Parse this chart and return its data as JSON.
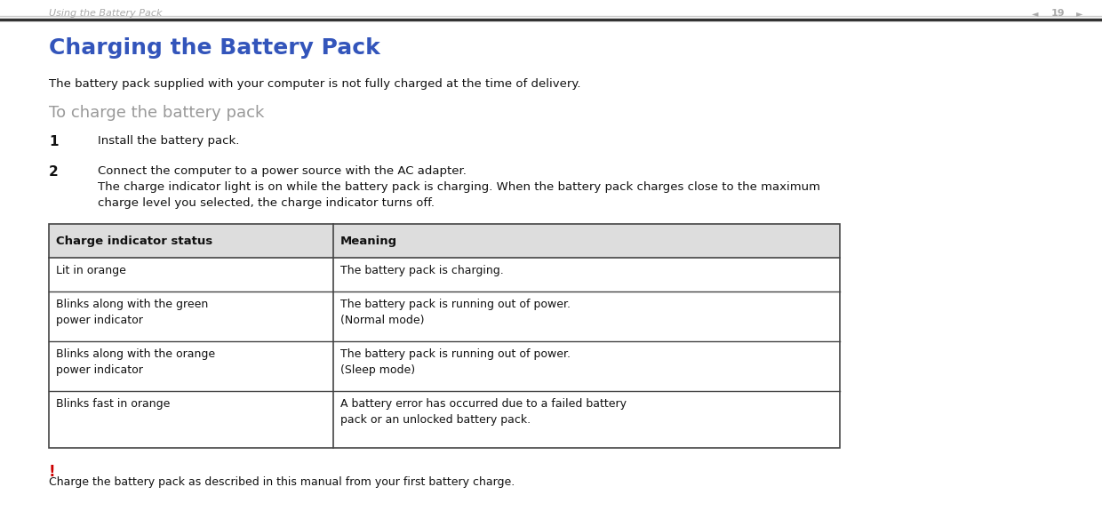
{
  "bg_color": "#ffffff",
  "header_text": "Using the Battery Pack",
  "header_page": "19",
  "header_color": "#aaaaaa",
  "title": "Charging the Battery Pack",
  "title_color": "#3355bb",
  "subtitle_desc": "The battery pack supplied with your computer is not fully charged at the time of delivery.",
  "section_heading": "To charge the battery pack",
  "section_heading_color": "#999999",
  "step1_num": "1",
  "step1_text": "Install the battery pack.",
  "step2_num": "2",
  "step2_line1": "Connect the computer to a power source with the AC adapter.",
  "step2_line2": "The charge indicator light is on while the battery pack is charging. When the battery pack charges close to the maximum",
  "step2_line3": "charge level you selected, the charge indicator turns off.",
  "table_header": [
    "Charge indicator status",
    "Meaning"
  ],
  "table_rows": [
    [
      "Lit in orange",
      "The battery pack is charging."
    ],
    [
      "Blinks along with the green\npower indicator",
      "The battery pack is running out of power.\n(Normal mode)"
    ],
    [
      "Blinks along with the orange\npower indicator",
      "The battery pack is running out of power.\n(Sleep mode)"
    ],
    [
      "Blinks fast in orange",
      "A battery error has occurred due to a failed battery\npack or an unlocked battery pack."
    ]
  ],
  "note_symbol": "!",
  "note_symbol_color": "#cc0000",
  "note_text": "Charge the battery pack as described in this manual from your first battery charge.",
  "table_header_bg": "#dddddd",
  "table_border_color": "#444444",
  "font_size_header": 8,
  "font_size_title": 18,
  "font_size_section": 13,
  "font_size_body": 9.5,
  "font_size_step_num": 11,
  "font_size_table_header": 9.5,
  "font_size_table_body": 9,
  "font_size_note": 9
}
